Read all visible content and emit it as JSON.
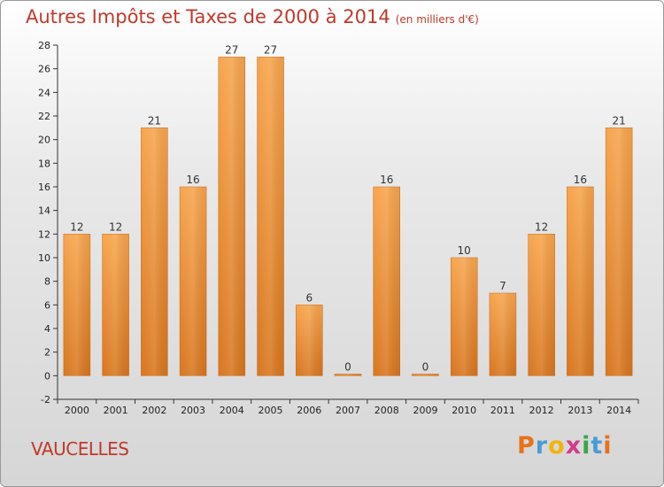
{
  "title": "Autres Impôts et Taxes de 2000 à 2014",
  "unit": "(en milliers d'€)",
  "commune": "VAUCELLES",
  "logo": [
    "P",
    "r",
    "o",
    "x",
    "i",
    "t",
    "i"
  ],
  "logo_colors": [
    "#e8711c",
    "#4a9bd6",
    "#f2b40c",
    "#d43c8a",
    "#3aa648",
    "#4a9bd6",
    "#e8711c"
  ],
  "chart_data": {
    "type": "bar",
    "categories": [
      "2000",
      "2001",
      "2002",
      "2003",
      "2004",
      "2005",
      "2006",
      "2007",
      "2008",
      "2009",
      "2010",
      "2011",
      "2012",
      "2013",
      "2014"
    ],
    "values": [
      12,
      12,
      21,
      16,
      27,
      27,
      6,
      0,
      16,
      0,
      10,
      7,
      12,
      16,
      21
    ],
    "ylim": [
      -2,
      28
    ],
    "yticks": [
      -2,
      0,
      2,
      4,
      6,
      8,
      10,
      12,
      14,
      16,
      18,
      20,
      22,
      24,
      26,
      28
    ],
    "grid": false,
    "bar_color": "#f0922e"
  }
}
